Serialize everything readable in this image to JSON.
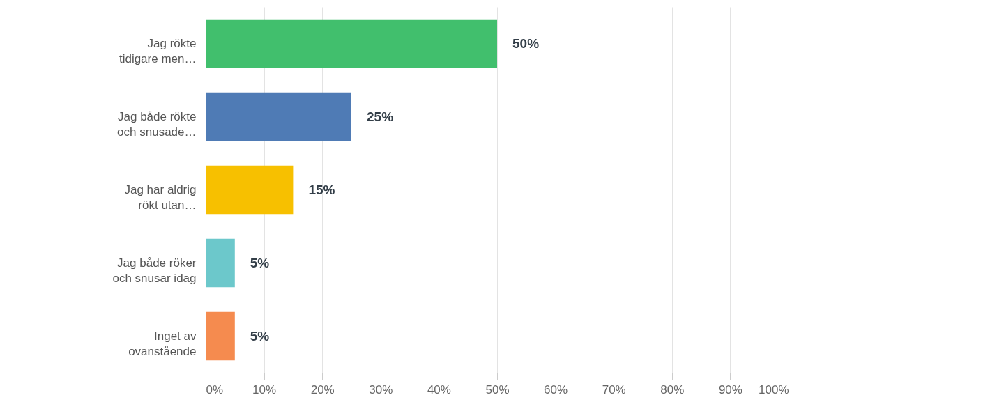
{
  "chart_data": {
    "type": "bar",
    "orientation": "horizontal",
    "categories": [
      "Jag rökte\ntidigare men…",
      "Jag både rökte\noch snusade…",
      "Jag har aldrig\nrökt utan…",
      "Jag både röker\noch snusar idag",
      "Inget av\novanstående"
    ],
    "values": [
      50,
      25,
      15,
      5,
      5
    ],
    "colors": [
      "#41bf6d",
      "#4f7bb5",
      "#f7c000",
      "#6cc8cb",
      "#f58b4f"
    ],
    "value_labels": [
      "50%",
      "25%",
      "15%",
      "5%",
      "5%"
    ],
    "xlim": [
      0,
      100
    ],
    "xticks": [
      {
        "value": 0,
        "label": "0%"
      },
      {
        "value": 10,
        "label": "10%"
      },
      {
        "value": 20,
        "label": "20%"
      },
      {
        "value": 30,
        "label": "30%"
      },
      {
        "value": 40,
        "label": "40%"
      },
      {
        "value": 50,
        "label": "50%"
      },
      {
        "value": 60,
        "label": "60%"
      },
      {
        "value": 70,
        "label": "70%"
      },
      {
        "value": 80,
        "label": "80%"
      },
      {
        "value": 90,
        "label": "90%"
      },
      {
        "value": 100,
        "label": "100%"
      }
    ],
    "grid": "x"
  }
}
